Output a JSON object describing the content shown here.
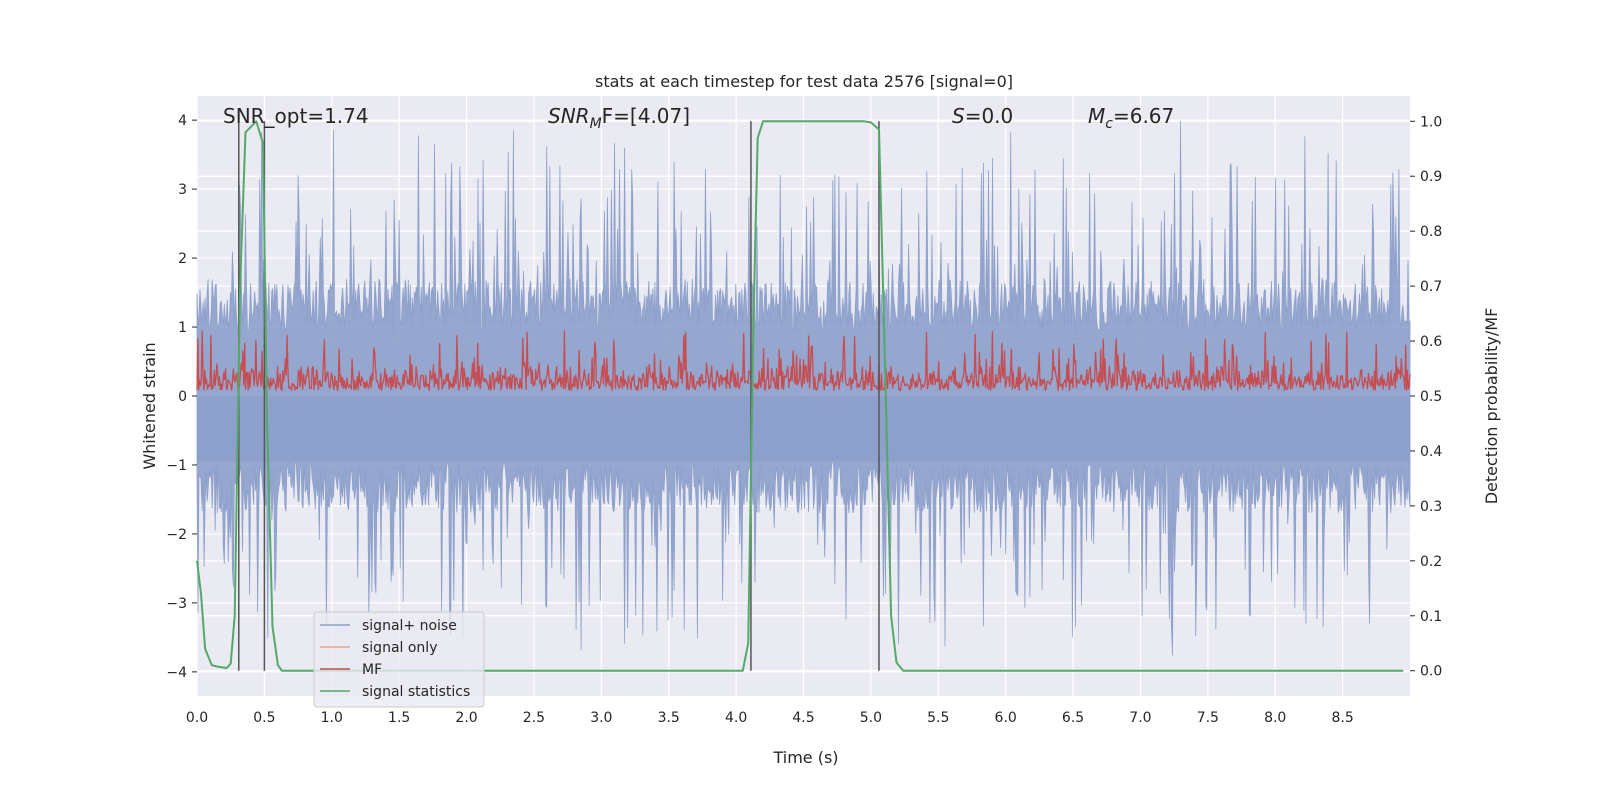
{
  "chart_data": {
    "type": "line",
    "title": "stats at each timestep for test data 2576 [signal=0]",
    "xlabel": "Time (s)",
    "ylabel": "Whitened strain",
    "ylabel_right": "Detection probability/MF",
    "xlim": [
      0.0,
      9.0
    ],
    "ylim": [
      -4.35,
      4.35
    ],
    "ylim_right": [
      -0.046,
      1.046
    ],
    "x_ticks": [
      "0.0",
      "0.5",
      "1.0",
      "1.5",
      "2.0",
      "2.5",
      "3.0",
      "3.5",
      "4.0",
      "4.5",
      "5.0",
      "5.5",
      "6.0",
      "6.5",
      "7.0",
      "7.5",
      "8.0",
      "8.5"
    ],
    "y_ticks": [
      "−4",
      "−3",
      "−2",
      "−1",
      "0",
      "1",
      "2",
      "3",
      "4"
    ],
    "y_ticks_right": [
      "0.0",
      "0.1",
      "0.2",
      "0.3",
      "0.4",
      "0.5",
      "0.6",
      "0.7",
      "0.8",
      "0.9",
      "1.0"
    ],
    "grid": true,
    "annotations": {
      "snr_opt": "SNR_opt=1.74",
      "snr_mf_main": "SNR",
      "snr_mf_sub": "M",
      "snr_mf_rest": "F=[4.07]",
      "s_main": "S",
      "s_rest": "=0.0",
      "mc_main": "M",
      "mc_sub": "c",
      "mc_rest": "=6.67"
    },
    "vertical_markers": [
      0.31,
      0.5,
      4.11,
      5.06
    ],
    "series": [
      {
        "name": "signal+ noise",
        "color": "#8da0cb",
        "axis": "left",
        "description": "whitened strain time series, roughly symmetric noise with amplitude up to about ±4",
        "envelope": {
          "upper_typical": 1.7,
          "upper_peak": 4.0,
          "lower_typical": -1.7,
          "lower_peak": -4.0
        }
      },
      {
        "name": "signal only",
        "color": "#e8a58c",
        "axis": "left",
        "values": []
      },
      {
        "name": "MF",
        "color": "#c44e52",
        "axis": "right",
        "description": "matched filter output, fluctuating between about 0.50 and 0.62",
        "range": [
          0.5,
          0.62
        ]
      },
      {
        "name": "signal statistics",
        "color": "#55a868",
        "axis": "right",
        "points": [
          [
            0.0,
            0.2
          ],
          [
            0.03,
            0.14
          ],
          [
            0.06,
            0.04
          ],
          [
            0.11,
            0.01
          ],
          [
            0.16,
            0.007
          ],
          [
            0.22,
            0.005
          ],
          [
            0.25,
            0.013
          ],
          [
            0.28,
            0.1
          ],
          [
            0.32,
            0.7
          ],
          [
            0.36,
            0.98
          ],
          [
            0.4,
            0.99
          ],
          [
            0.44,
            1.0
          ],
          [
            0.49,
            0.96
          ],
          [
            0.52,
            0.45
          ],
          [
            0.56,
            0.08
          ],
          [
            0.6,
            0.01
          ],
          [
            0.63,
            0.0
          ],
          [
            2.8,
            0.0
          ],
          [
            4.05,
            0.0
          ],
          [
            4.09,
            0.05
          ],
          [
            4.13,
            0.65
          ],
          [
            4.16,
            0.97
          ],
          [
            4.2,
            1.0
          ],
          [
            4.8,
            1.0
          ],
          [
            4.95,
            1.0
          ],
          [
            5.0,
            0.998
          ],
          [
            5.06,
            0.985
          ],
          [
            5.1,
            0.6
          ],
          [
            5.15,
            0.1
          ],
          [
            5.19,
            0.015
          ],
          [
            5.24,
            0.0
          ],
          [
            8.95,
            0.0
          ]
        ]
      }
    ],
    "legend": {
      "position": "lower-left",
      "entries": [
        "signal+ noise",
        "signal only",
        "MF",
        "signal statistics"
      ]
    }
  }
}
